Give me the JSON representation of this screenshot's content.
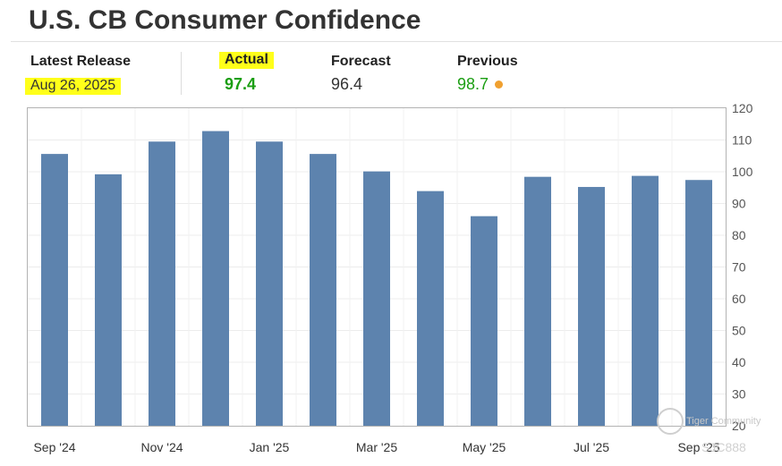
{
  "header": {
    "title": "U.S. CB Consumer Confidence"
  },
  "stats": {
    "latest_release_label": "Latest Release",
    "latest_release_value": "Aug 26, 2025",
    "actual_label": "Actual",
    "actual_value": "97.4",
    "forecast_label": "Forecast",
    "forecast_value": "96.4",
    "previous_label": "Previous",
    "previous_value": "98.7"
  },
  "colors": {
    "bar": "#5d83ae",
    "highlight": "#ffff1a",
    "actual_green": "#1b9e12",
    "previous_dot": "#f0a030"
  },
  "watermark": {
    "text": "Tiger Community",
    "sub": "SJC888"
  },
  "chart_data": {
    "type": "bar",
    "categories": [
      "Sep '24",
      "Oct '24",
      "Nov '24",
      "Dec '24",
      "Jan '25",
      "Feb '25",
      "Mar '25",
      "Apr '25",
      "May '25",
      "Jun '25",
      "Jul '25",
      "Aug '25",
      "Sep '25"
    ],
    "values": [
      105.6,
      99.2,
      109.5,
      112.8,
      109.5,
      105.6,
      100.1,
      93.9,
      86.0,
      98.4,
      95.2,
      98.7,
      97.4
    ],
    "x_tick_labels": [
      "Sep '24",
      "Nov '24",
      "Jan '25",
      "Mar '25",
      "May '25",
      "Jul '25",
      "Sep '25"
    ],
    "y_ticks": [
      20,
      30,
      40,
      50,
      60,
      70,
      80,
      90,
      100,
      110,
      120
    ],
    "ylim": [
      20,
      120
    ],
    "y_axis_side": "right",
    "grid": true,
    "title": "",
    "xlabel": "",
    "ylabel": ""
  }
}
